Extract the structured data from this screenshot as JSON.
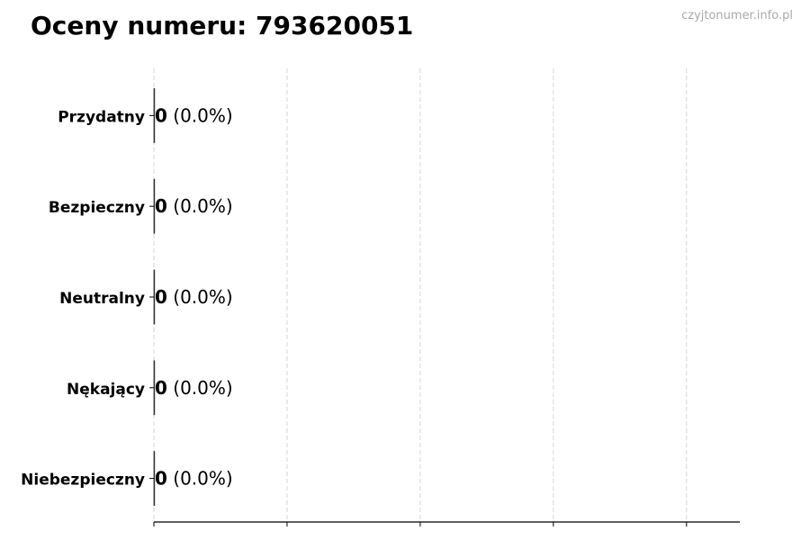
{
  "chart_data": {
    "type": "bar",
    "orientation": "horizontal",
    "title": "Oceny numeru: 793620051",
    "watermark": "czyjtonumer.info.pl",
    "categories": [
      "Przydatny",
      "Bezpieczny",
      "Neutralny",
      "Nękający",
      "Niebezpieczny"
    ],
    "values": [
      0,
      0,
      0,
      0,
      0
    ],
    "labels": [
      {
        "count": "0",
        "pct": "(0.0%)"
      },
      {
        "count": "0",
        "pct": "(0.0%)"
      },
      {
        "count": "0",
        "pct": "(0.0%)"
      },
      {
        "count": "0",
        "pct": "(0.0%)"
      },
      {
        "count": "0",
        "pct": "(0.0%)"
      }
    ],
    "xlim": [
      0,
      0.88
    ],
    "xticks": [
      0,
      0.2,
      0.4,
      0.6,
      0.8
    ],
    "xtick_labels_shown": false,
    "grid": "x dashed",
    "bar_edge_color": "#333333",
    "grid_color": "#cccccc",
    "xlabel": "",
    "ylabel": ""
  }
}
